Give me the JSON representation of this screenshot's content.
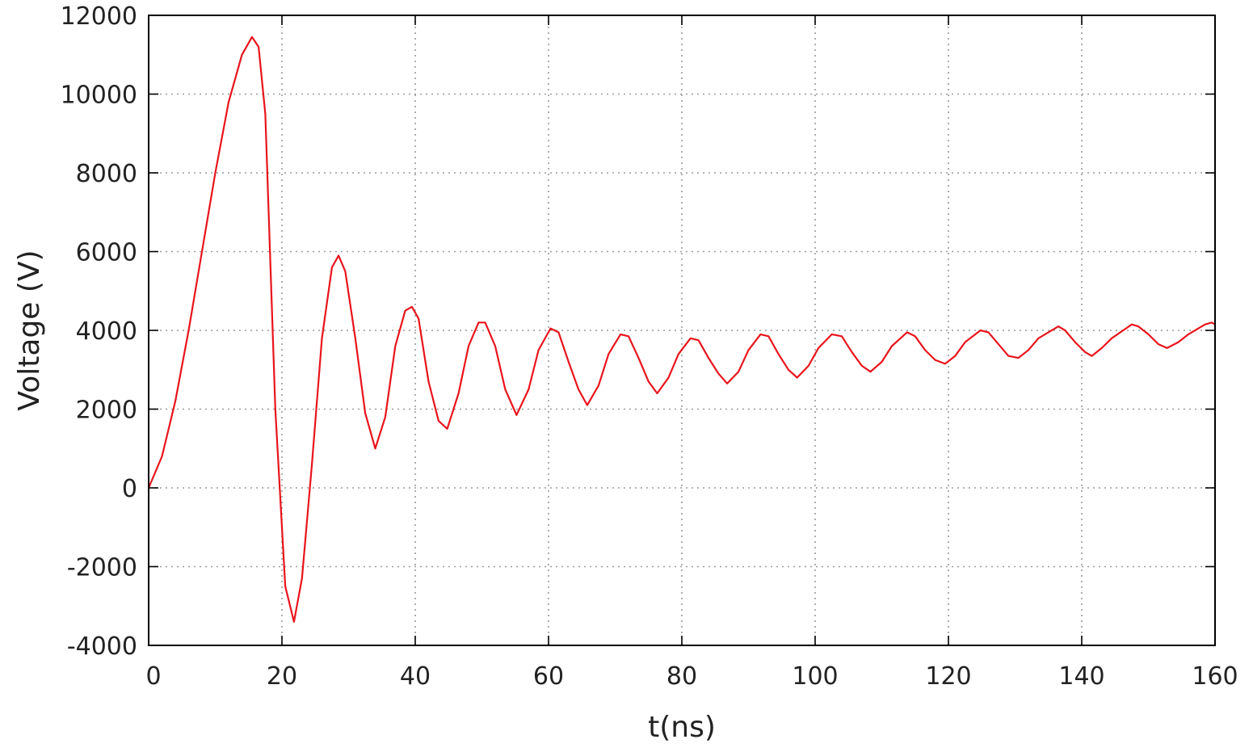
{
  "chart_data": {
    "type": "line",
    "title": "",
    "xlabel": "t(ns)",
    "ylabel": "Voltage (V)",
    "xlim": [
      0,
      160
    ],
    "ylim": [
      -4000,
      12000
    ],
    "x_ticks": [
      0,
      20,
      40,
      60,
      80,
      100,
      120,
      140,
      160
    ],
    "x_tick_labels": [
      "0",
      "20",
      "40",
      "60",
      "80",
      "100",
      "120",
      "140",
      "160"
    ],
    "y_ticks": [
      -4000,
      -2000,
      0,
      2000,
      4000,
      6000,
      8000,
      10000,
      12000
    ],
    "y_tick_labels": [
      "-4000",
      "-2000",
      "0",
      "2000",
      "4000",
      "6000",
      "8000",
      "10000",
      "12000"
    ],
    "grid": true,
    "legend": "none",
    "series": [
      {
        "color": "#e8141c",
        "x": [
          0,
          2,
          4,
          6,
          8,
          10,
          12,
          14,
          15.5,
          16.5,
          17.5,
          19,
          20.5,
          21.8,
          23,
          24.5,
          26,
          27.5,
          28.5,
          29.5,
          31,
          32.5,
          34,
          35.5,
          37,
          38.5,
          39.5,
          40.5,
          42,
          43.5,
          44.8,
          46.5,
          48,
          49.5,
          50.5,
          52,
          53.5,
          55.2,
          57,
          58.5,
          60.3,
          61.5,
          63,
          64.5,
          65.8,
          67.5,
          69,
          70.8,
          72,
          73.5,
          75,
          76.3,
          78,
          79.5,
          81.3,
          82.5,
          84,
          85.5,
          86.8,
          88.5,
          90,
          91.8,
          93,
          94.5,
          96,
          97.3,
          99,
          100.5,
          102.5,
          104,
          105.5,
          107,
          108.3,
          110,
          111.5,
          113.8,
          115,
          116.5,
          118,
          119.5,
          121,
          122.5,
          124.8,
          126,
          127.5,
          129,
          130.5,
          132,
          133.5,
          136.5,
          137.5,
          139,
          140.5,
          141.5,
          143,
          144.5,
          147.5,
          148.5,
          150,
          151.5,
          152.8,
          154.5,
          156,
          158.5,
          159.5,
          160
        ],
        "y": [
          0,
          800,
          2200,
          4000,
          6000,
          8000,
          9800,
          11000,
          11450,
          11200,
          9500,
          2000,
          -2500,
          -3400,
          -2300,
          600,
          3800,
          5600,
          5900,
          5500,
          3800,
          1900,
          1000,
          1800,
          3600,
          4500,
          4600,
          4300,
          2700,
          1700,
          1500,
          2400,
          3600,
          4200,
          4200,
          3600,
          2500,
          1850,
          2500,
          3500,
          4050,
          3950,
          3200,
          2500,
          2100,
          2600,
          3400,
          3900,
          3850,
          3300,
          2700,
          2400,
          2800,
          3400,
          3800,
          3750,
          3300,
          2900,
          2650,
          2950,
          3500,
          3900,
          3850,
          3400,
          3000,
          2800,
          3100,
          3550,
          3900,
          3850,
          3450,
          3100,
          2950,
          3200,
          3600,
          3950,
          3850,
          3500,
          3250,
          3150,
          3350,
          3700,
          4000,
          3950,
          3650,
          3350,
          3300,
          3500,
          3800,
          4100,
          4000,
          3700,
          3450,
          3350,
          3550,
          3800,
          4150,
          4100,
          3900,
          3650,
          3550,
          3700,
          3900,
          4150,
          4200,
          4150
        ]
      }
    ]
  }
}
